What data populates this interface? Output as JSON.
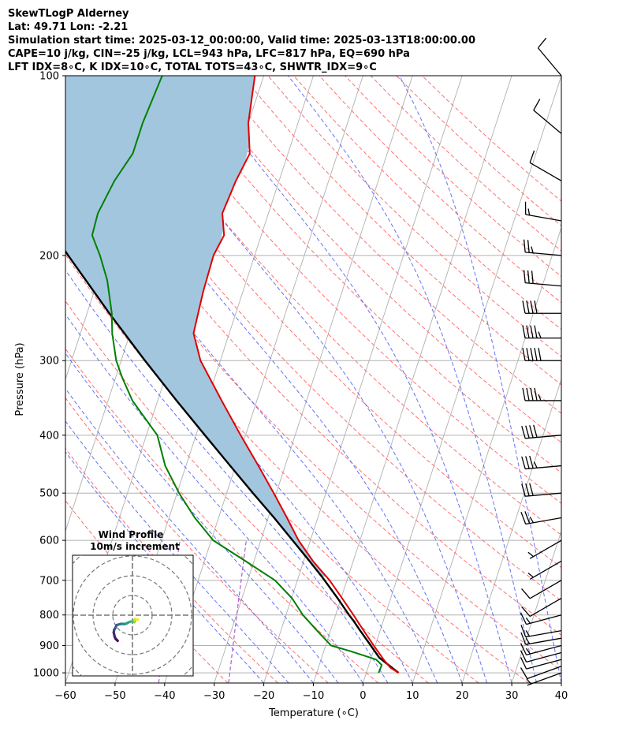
{
  "header": {
    "title": "SkewTLogP Alderney",
    "location": "Lat: 49.71   Lon: -2.21",
    "times": "Simulation start time: 2025-03-12_00:00:00, Valid time: 2025-03-13T18:00:00.00",
    "indices1": "CAPE=10 j/kg, CIN=-25 j/kg, LCL=943 hPa, LFC=817 hPa, EQ=690 hPa",
    "indices2": "LFT IDX=8∘C, K IDX=10∘C, TOTAL TOTS=43∘C, SHWTR_IDX=9∘C"
  },
  "colors": {
    "temperature": "#e00000",
    "dewpoint": "#008000",
    "parcel": "#000000",
    "cape_fill": "#a3c6df",
    "dry_adiabat": "#ff6060",
    "moist_adiabat": "#4a5cf0",
    "mixing_ratio": "#9b3cc8",
    "isotherm": "#b0b0b0"
  },
  "chart_data": [
    {
      "type": "line",
      "subtype": "skew-T log-P diagram",
      "xlabel": "Temperature (∘C)",
      "ylabel": "Pressure (hPa)",
      "xlim": [
        -60,
        40
      ],
      "ylim": [
        1040,
        100
      ],
      "y_scale": "log",
      "x_ticks": [
        "−60",
        "−50",
        "−40",
        "−30",
        "−20",
        "−10",
        "0",
        "10",
        "20",
        "30",
        "40"
      ],
      "y_ticks": [
        "1000",
        "900",
        "800",
        "700",
        "600",
        "500",
        "400",
        "300",
        "200",
        "100"
      ],
      "grid": true,
      "series": [
        {
          "key": "temperature",
          "pressure": [
            1000,
            980,
            950,
            900,
            850,
            800,
            750,
            700,
            650,
            600,
            550,
            500,
            450,
            400,
            350,
            300,
            270,
            250,
            230,
            200,
            185,
            170,
            150,
            135,
            120,
            100
          ],
          "temperature": [
            6.5,
            4.5,
            2.6,
            -0.3,
            -3.3,
            -6.4,
            -9.8,
            -13.5,
            -18.1,
            -22.4,
            -26.2,
            -30.5,
            -35.4,
            -41.0,
            -47.1,
            -54.0,
            -57.2,
            -57.6,
            -58.0,
            -58.3,
            -57.5,
            -59.3,
            -58.7,
            -57.7,
            -60.0,
            -61.8
          ]
        },
        {
          "key": "dewpoint",
          "pressure": [
            1000,
            970,
            950,
            920,
            900,
            850,
            800,
            750,
            700,
            650,
            600,
            550,
            500,
            450,
            400,
            350,
            320,
            300,
            270,
            250,
            220,
            200,
            185,
            170,
            150,
            135,
            120,
            100
          ],
          "temperature": [
            2.5,
            2.6,
            1.1,
            -4.6,
            -8.9,
            -12.7,
            -16.6,
            -19.9,
            -24.5,
            -31.7,
            -39.6,
            -44.8,
            -49.6,
            -54.2,
            -57.8,
            -65.1,
            -68.7,
            -71.0,
            -73.6,
            -75.0,
            -78.1,
            -81.2,
            -84.1,
            -84.4,
            -83.2,
            -81.3,
            -81.3,
            -80.5
          ]
        },
        {
          "key": "parcel",
          "pressure": [
            1000,
            980,
            943,
            900,
            850,
            817,
            800,
            750,
            700,
            690,
            650,
            600,
            550,
            500,
            450,
            400,
            350,
            300,
            250,
            200,
            150,
            120,
            100
          ],
          "temperature": [
            6.5,
            4.8,
            1.6,
            -0.9,
            -4.0,
            -6.1,
            -7.3,
            -10.7,
            -14.5,
            -15.3,
            -18.8,
            -23.6,
            -28.8,
            -34.7,
            -41.1,
            -48.2,
            -56.2,
            -65.2,
            -75.5,
            -87.6,
            -102.5,
            -113.7,
            -122.3
          ]
        }
      ],
      "wind_barbs": {
        "pressure": [
          1000,
          975,
          950,
          925,
          900,
          875,
          850,
          800,
          750,
          700,
          650,
          600,
          550,
          500,
          450,
          400,
          350,
          300,
          275,
          250,
          225,
          200,
          175,
          150,
          125,
          100
        ],
        "speed_kt": [
          8,
          10,
          10,
          10,
          15,
          15,
          15,
          15,
          10,
          10,
          5,
          5,
          25,
          30,
          35,
          40,
          45,
          50,
          45,
          40,
          30,
          25,
          15,
          10,
          10,
          10
        ],
        "direction_deg": [
          250,
          250,
          255,
          255,
          255,
          260,
          260,
          255,
          240,
          240,
          240,
          240,
          260,
          265,
          265,
          265,
          270,
          270,
          270,
          270,
          275,
          275,
          280,
          300,
          310,
          320
        ]
      }
    },
    {
      "type": "line",
      "subtype": "hodograph",
      "title": "Wind Profile",
      "subtitle": "10m/s increment",
      "ring_step_ms": 10,
      "colormap": "viridis",
      "u": [
        -7.5,
        -8.5,
        -9.0,
        -9.5,
        -9.3,
        -8.6,
        -8.0,
        -6.2,
        -5.5,
        -4.0,
        -3.0,
        -1.5,
        -0.2,
        0.5,
        1.0,
        1.2,
        1.0,
        1.4,
        2.2,
        2.8
      ],
      "v": [
        -13.0,
        -12.0,
        -11.0,
        -8.8,
        -7.5,
        -6.3,
        -5.0,
        -4.5,
        -4.4,
        -4.5,
        -4.2,
        -3.4,
        -3.1,
        -3.0,
        -3.5,
        -3.2,
        -2.5,
        -2.0,
        -2.2,
        -2.2
      ]
    }
  ]
}
